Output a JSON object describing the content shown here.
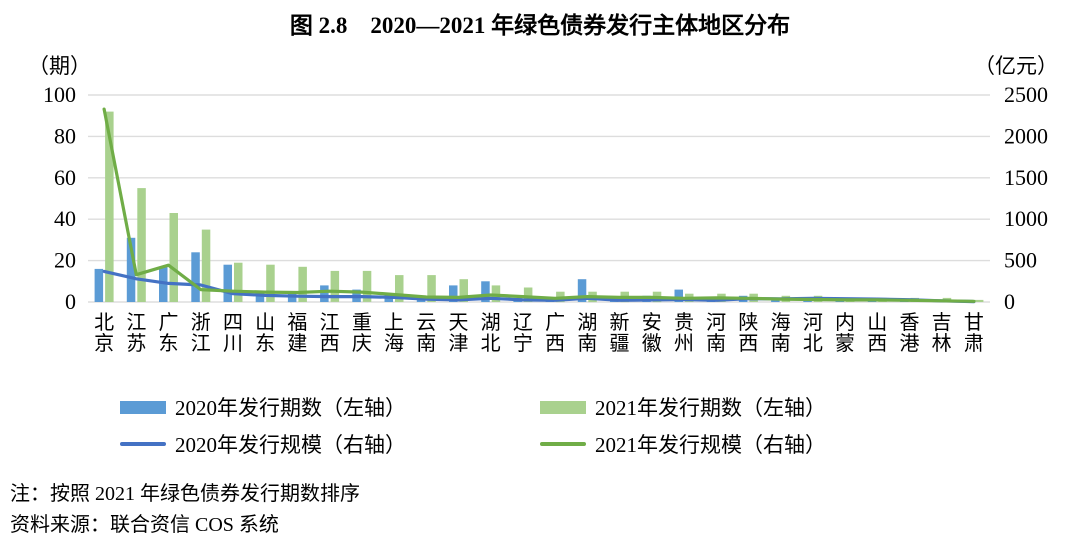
{
  "title": "图 2.8　2020—2021 年绿色债券发行主体地区分布",
  "left_axis_unit": "（期）",
  "right_axis_unit": "（亿元）",
  "legend": [
    {
      "label": "2020年发行期数（左轴）",
      "type": "bar",
      "color": "#5B9BD5"
    },
    {
      "label": "2021年发行期数（左轴）",
      "type": "bar",
      "color": "#A9D18E"
    },
    {
      "label": "2020年发行规模（右轴）",
      "type": "line",
      "color": "#4472C4"
    },
    {
      "label": "2021年发行规模（右轴）",
      "type": "line",
      "color": "#70AD47"
    }
  ],
  "notes": [
    "注：按照 2021 年绿色债券发行期数排序",
    "资料来源：联合资信 COS 系统"
  ],
  "chart_data": {
    "type": "bar",
    "subtype": "grouped bars + two lines (dual axis combo)",
    "title": "图 2.8　2020—2021 年绿色债券发行主体地区分布",
    "categories": [
      "北京",
      "江苏",
      "广东",
      "浙江",
      "四川",
      "山东",
      "福建",
      "江西",
      "重庆",
      "上海",
      "云南",
      "天津",
      "湖北",
      "辽宁",
      "广西",
      "湖南",
      "新疆",
      "安徽",
      "贵州",
      "河南",
      "陕西",
      "海南",
      "河北",
      "内蒙",
      "山西",
      "香港",
      "吉林",
      "甘肃"
    ],
    "series": [
      {
        "name": "2020年发行期数（左轴）",
        "type": "bar",
        "axis": "left",
        "color": "#5B9BD5",
        "values": [
          16,
          31,
          17,
          24,
          18,
          5,
          5,
          8,
          6,
          4,
          3,
          8,
          10,
          2,
          1,
          11,
          2,
          3,
          6,
          2,
          3,
          2,
          1,
          1,
          2,
          1,
          1,
          1
        ]
      },
      {
        "name": "2021年发行期数（左轴）",
        "type": "bar",
        "axis": "left",
        "color": "#A9D18E",
        "values": [
          92,
          55,
          43,
          35,
          19,
          18,
          17,
          15,
          15,
          13,
          13,
          11,
          8,
          7,
          5,
          5,
          5,
          5,
          4,
          4,
          4,
          3,
          3,
          2,
          2,
          2,
          2,
          1
        ]
      },
      {
        "name": "2020年发行规模（右轴）",
        "type": "line",
        "axis": "right",
        "color": "#4472C4",
        "values": [
          370,
          280,
          225,
          205,
          100,
          80,
          70,
          65,
          65,
          55,
          35,
          25,
          45,
          25,
          20,
          45,
          20,
          25,
          30,
          20,
          40,
          38,
          45,
          40,
          35,
          28,
          15,
          5
        ]
      },
      {
        "name": "2021年发行规模（右轴）",
        "type": "line",
        "axis": "right",
        "color": "#70AD47",
        "values": [
          2330,
          330,
          445,
          150,
          130,
          120,
          115,
          130,
          120,
          90,
          60,
          55,
          85,
          65,
          45,
          65,
          55,
          55,
          45,
          50,
          45,
          35,
          30,
          25,
          25,
          20,
          15,
          8
        ]
      }
    ],
    "left_axis": {
      "label": "（期）",
      "min": 0,
      "max": 100,
      "ticks": [
        0,
        20,
        40,
        60,
        80,
        100
      ]
    },
    "right_axis": {
      "label": "（亿元）",
      "min": 0,
      "max": 2500,
      "ticks": [
        0,
        500,
        1000,
        1500,
        2000,
        2500
      ]
    },
    "grid": true,
    "legend_position": "bottom",
    "gridline_color": "#dddddd"
  }
}
